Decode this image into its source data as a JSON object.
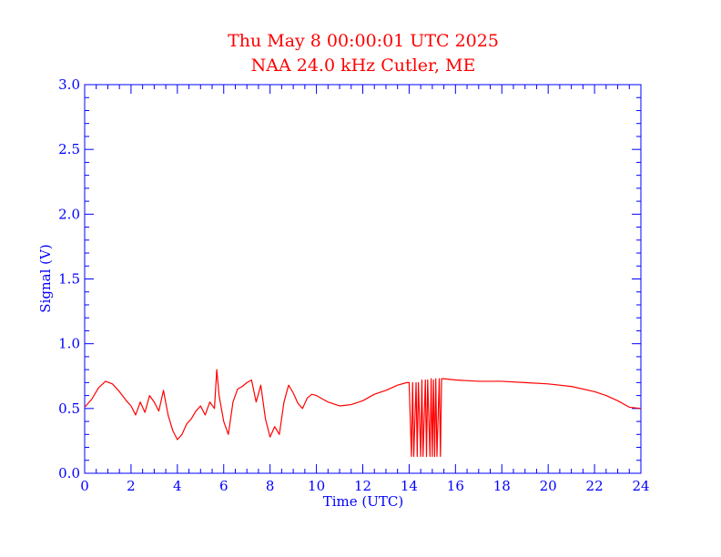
{
  "chart_data": {
    "type": "line",
    "title": "Thu May 8 00:00:01 UTC 2025",
    "subtitle": "NAA 24.0 kHz Cutler, ME",
    "xlabel": "Time (UTC)",
    "ylabel": "Signal (V)",
    "xlim": [
      0,
      24
    ],
    "ylim": [
      0.0,
      3.0
    ],
    "xticks": [
      0,
      2,
      4,
      6,
      8,
      10,
      12,
      14,
      16,
      18,
      20,
      22,
      24
    ],
    "xtick_labels": [
      "0",
      "2",
      "4",
      "6",
      "8",
      "10",
      "12",
      "14",
      "16",
      "18",
      "20",
      "22",
      "24"
    ],
    "yticks": [
      0.0,
      0.5,
      1.0,
      1.5,
      2.0,
      2.5,
      3.0
    ],
    "ytick_labels": [
      "0.0",
      "0.5",
      "1.0",
      "1.5",
      "2.0",
      "2.5",
      "3.0"
    ],
    "grid": false,
    "colors": {
      "axis": "#0000ff",
      "title": "#ff0000",
      "series": "#ff0000"
    },
    "series": [
      {
        "x": [
          0.0,
          0.3,
          0.6,
          0.9,
          1.2,
          1.5,
          1.8,
          2.0,
          2.2,
          2.4,
          2.6,
          2.8,
          3.0,
          3.2,
          3.4,
          3.6,
          3.8,
          4.0,
          4.2,
          4.4,
          4.6,
          4.8,
          5.0,
          5.2,
          5.4,
          5.6,
          5.7,
          5.8,
          6.0,
          6.2,
          6.4,
          6.6,
          6.8,
          7.0,
          7.2,
          7.4,
          7.6,
          7.8,
          8.0,
          8.2,
          8.4,
          8.6,
          8.8,
          9.0,
          9.2,
          9.4,
          9.6,
          9.8,
          10.0,
          10.5,
          11.0,
          11.5,
          12.0,
          12.5,
          13.0,
          13.5,
          13.9,
          14.0,
          14.1,
          14.15,
          14.2,
          14.3,
          14.35,
          14.4,
          14.5,
          14.55,
          14.6,
          14.7,
          14.75,
          14.8,
          14.9,
          14.95,
          15.0,
          15.05,
          15.1,
          15.15,
          15.2,
          15.3,
          15.35,
          15.4,
          15.5,
          16.0,
          17.0,
          18.0,
          19.0,
          20.0,
          21.0,
          22.0,
          22.5,
          23.0,
          23.5,
          24.0
        ],
        "y": [
          0.51,
          0.57,
          0.66,
          0.71,
          0.69,
          0.63,
          0.56,
          0.52,
          0.45,
          0.55,
          0.47,
          0.6,
          0.55,
          0.48,
          0.64,
          0.45,
          0.33,
          0.26,
          0.3,
          0.38,
          0.42,
          0.48,
          0.52,
          0.45,
          0.55,
          0.5,
          0.8,
          0.6,
          0.4,
          0.3,
          0.55,
          0.65,
          0.67,
          0.7,
          0.72,
          0.55,
          0.68,
          0.42,
          0.28,
          0.36,
          0.3,
          0.55,
          0.68,
          0.62,
          0.54,
          0.5,
          0.58,
          0.61,
          0.6,
          0.55,
          0.52,
          0.53,
          0.56,
          0.61,
          0.64,
          0.68,
          0.7,
          0.7,
          0.13,
          0.7,
          0.13,
          0.7,
          0.13,
          0.7,
          0.13,
          0.72,
          0.13,
          0.72,
          0.13,
          0.72,
          0.13,
          0.73,
          0.13,
          0.72,
          0.13,
          0.73,
          0.13,
          0.73,
          0.13,
          0.73,
          0.73,
          0.72,
          0.71,
          0.71,
          0.7,
          0.69,
          0.67,
          0.63,
          0.6,
          0.56,
          0.51,
          0.5
        ]
      }
    ]
  }
}
